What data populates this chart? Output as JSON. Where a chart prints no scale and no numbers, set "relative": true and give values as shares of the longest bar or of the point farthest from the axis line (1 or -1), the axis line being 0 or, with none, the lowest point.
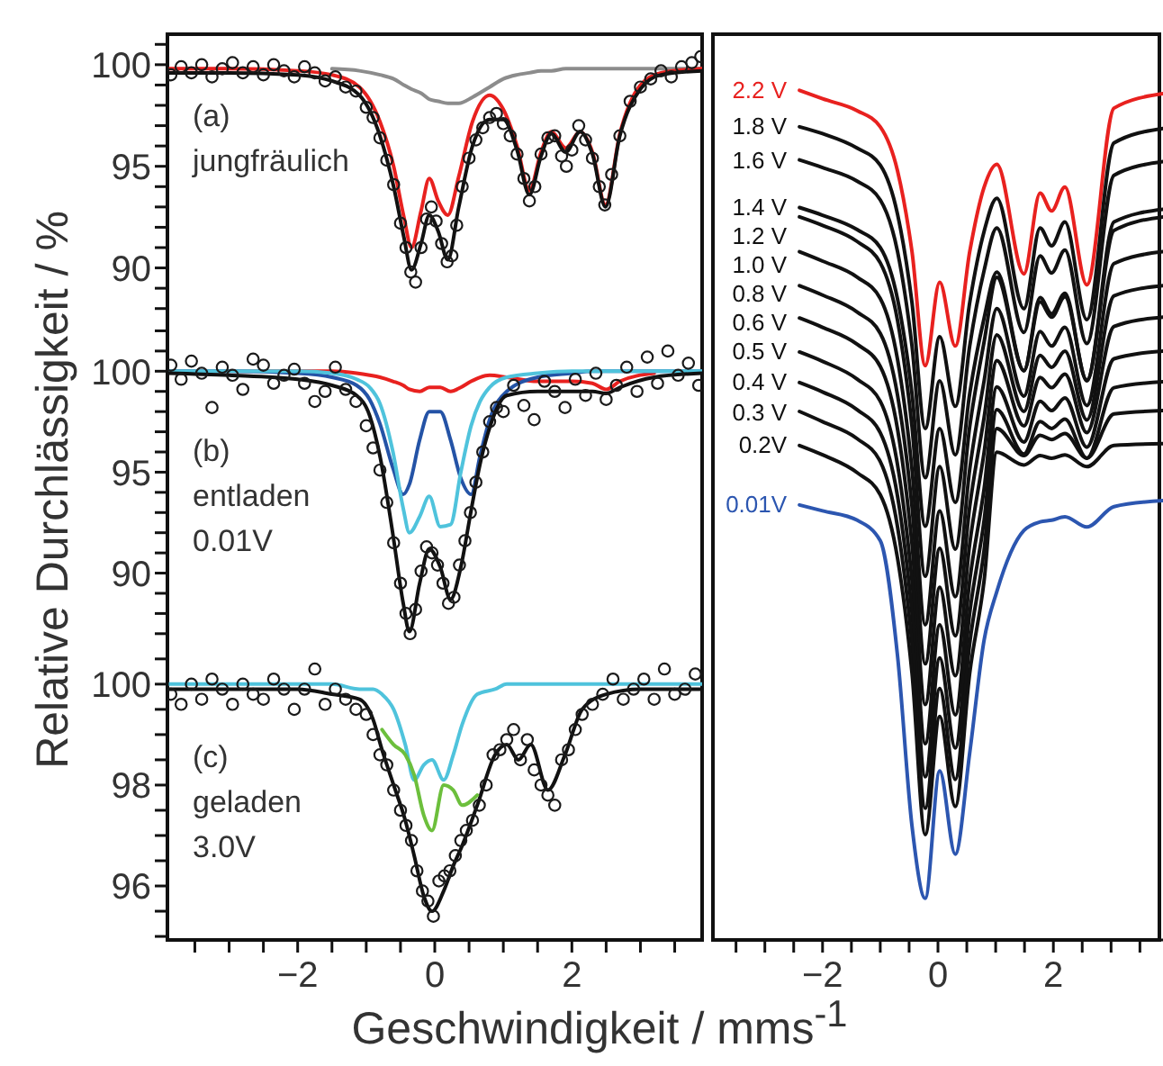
{
  "chart_data": [
    {
      "type": "line",
      "xlim": [
        -3.9,
        3.9
      ],
      "ylim": [
        87.5,
        101.5
      ],
      "tick_labels": "y",
      "annotations": [
        "(a)",
        "jungfräulich"
      ],
      "yticks": [
        {
          "value": 88,
          "label": null
        },
        {
          "value": 89,
          "label": null
        },
        90,
        {
          "value": 91,
          "label": null
        },
        {
          "value": 92,
          "label": null
        },
        {
          "value": 93,
          "label": null
        },
        {
          "value": 94,
          "label": null
        },
        95,
        {
          "value": 96,
          "label": null
        },
        {
          "value": 97,
          "label": null
        },
        {
          "value": 98,
          "label": null
        },
        {
          "value": 99,
          "label": null
        },
        100,
        {
          "value": 101,
          "label": null
        }
      ],
      "series": [
        {
          "type": "scatter",
          "marker": "circle",
          "color": "#1a1a1a",
          "x": [
            -3.85,
            -3.7,
            -3.55,
            -3.4,
            -3.25,
            -3.1,
            -2.95,
            -2.8,
            -2.65,
            -2.5,
            -2.35,
            -2.2,
            -2.05,
            -1.9,
            -1.75,
            -1.6,
            -1.45,
            -1.3,
            -1.15,
            -1.0,
            -0.9,
            -0.8,
            -0.7,
            -0.6,
            -0.5,
            -0.42,
            -0.35,
            -0.28,
            -0.2,
            -0.12,
            -0.05,
            0.02,
            0.1,
            0.18,
            0.25,
            0.32,
            0.4,
            0.5,
            0.6,
            0.7,
            0.8,
            0.9,
            1.0,
            1.1,
            1.2,
            1.3,
            1.38,
            1.46,
            1.55,
            1.65,
            1.75,
            1.85,
            1.92,
            2.0,
            2.1,
            2.2,
            2.3,
            2.4,
            2.48,
            2.58,
            2.7,
            2.85,
            3.0,
            3.15,
            3.3,
            3.45,
            3.6,
            3.75,
            3.88
          ],
          "values": [
            99.5,
            99.9,
            99.6,
            100.0,
            99.4,
            99.8,
            100.1,
            99.6,
            99.9,
            99.5,
            100.0,
            99.7,
            99.4,
            99.9,
            99.6,
            99.2,
            99.4,
            98.9,
            98.7,
            97.9,
            97.4,
            96.4,
            95.3,
            94.1,
            92.2,
            91.0,
            89.8,
            89.3,
            91.0,
            92.4,
            93.0,
            92.3,
            91.2,
            90.3,
            90.6,
            92.1,
            94.0,
            95.4,
            96.3,
            96.9,
            97.4,
            97.6,
            97.1,
            96.5,
            95.6,
            94.4,
            93.3,
            94.0,
            95.6,
            96.4,
            96.5,
            95.5,
            95.0,
            95.8,
            97.0,
            96.3,
            95.4,
            94.0,
            93.1,
            94.6,
            96.5,
            98.2,
            98.9,
            99.3,
            99.7,
            99.4,
            99.9,
            100.1,
            100.4
          ]
        },
        {
          "color": "#8c8c8c",
          "x": [
            -1.5,
            -1.1,
            -0.8,
            -0.6,
            -0.45,
            -0.34,
            -0.2,
            -0.08,
            0.05,
            0.19,
            0.35,
            0.55,
            0.8,
            1.0,
            1.2,
            1.38,
            1.55,
            1.7,
            1.91,
            2.12,
            2.3,
            2.49,
            2.7,
            3.0,
            3.3,
            3.9
          ],
          "values": [
            99.8,
            99.7,
            99.5,
            99.3,
            99.0,
            98.8,
            98.6,
            98.3,
            98.2,
            98.1,
            98.1,
            98.4,
            98.9,
            99.3,
            99.5,
            99.6,
            99.7,
            99.7,
            99.8,
            99.8,
            99.8,
            99.8,
            99.8,
            99.8,
            99.8,
            99.8
          ]
        },
        {
          "color": "#e8211f",
          "x": [
            -3.9,
            -3,
            -2,
            -1.5,
            -1.1,
            -0.8,
            -0.6,
            -0.45,
            -0.34,
            -0.2,
            -0.08,
            0.05,
            0.19,
            0.35,
            0.55,
            0.8,
            1.0,
            1.2,
            1.38,
            1.55,
            1.7,
            1.91,
            2.12,
            2.3,
            2.49,
            2.7,
            3.0,
            3.3,
            3.9
          ],
          "values": [
            99.8,
            99.8,
            99.7,
            99.5,
            98.9,
            97.2,
            95.0,
            92.5,
            91.0,
            92.8,
            94.4,
            93.3,
            92.6,
            94.5,
            97.2,
            98.5,
            97.8,
            96.0,
            93.8,
            95.7,
            96.7,
            95.9,
            96.7,
            95.7,
            93.1,
            96.6,
            99.0,
            99.6,
            99.8
          ]
        },
        {
          "color": "#111111",
          "x": [
            -3.9,
            -3,
            -2,
            -1.5,
            -1.1,
            -0.8,
            -0.6,
            -0.45,
            -0.34,
            -0.2,
            -0.08,
            0.05,
            0.19,
            0.35,
            0.55,
            0.8,
            1.0,
            1.2,
            1.38,
            1.55,
            1.7,
            1.91,
            2.12,
            2.3,
            2.49,
            2.7,
            3.0,
            3.3,
            3.9
          ],
          "values": [
            99.6,
            99.6,
            99.5,
            99.2,
            98.5,
            96.5,
            94.0,
            91.5,
            89.9,
            91.2,
            92.6,
            91.8,
            90.4,
            93.0,
            96.0,
            97.3,
            97.3,
            95.8,
            93.6,
            95.5,
            96.6,
            95.7,
            96.7,
            95.6,
            93.0,
            96.5,
            98.8,
            99.5,
            99.7
          ]
        }
      ]
    },
    {
      "type": "line",
      "xlim": [
        -3.9,
        3.9
      ],
      "ylim": [
        86.1,
        102.6
      ],
      "tick_labels": "y",
      "ylabel": "Relative Durchlässigkeit / %",
      "annotations": [
        "(b)",
        "entladen",
        "0.01V"
      ],
      "yticks": [
        {
          "value": 87,
          "label": null
        },
        {
          "value": 88,
          "label": null
        },
        {
          "value": 89,
          "label": null
        },
        90,
        {
          "value": 91,
          "label": null
        },
        {
          "value": 92,
          "label": null
        },
        {
          "value": 93,
          "label": null
        },
        {
          "value": 94,
          "label": null
        },
        95,
        {
          "value": 96,
          "label": null
        },
        {
          "value": 97,
          "label": null
        },
        {
          "value": 98,
          "label": null
        },
        {
          "value": 99,
          "label": null
        },
        100,
        {
          "value": 101,
          "label": null
        },
        {
          "value": 102,
          "label": null
        }
      ],
      "series": [
        {
          "type": "scatter",
          "marker": "circle",
          "color": "#1a1a1a",
          "x": [
            -3.85,
            -3.7,
            -3.55,
            -3.4,
            -3.25,
            -3.1,
            -2.95,
            -2.8,
            -2.65,
            -2.5,
            -2.35,
            -2.2,
            -2.05,
            -1.9,
            -1.75,
            -1.6,
            -1.45,
            -1.3,
            -1.15,
            -1.0,
            -0.9,
            -0.8,
            -0.7,
            -0.6,
            -0.5,
            -0.42,
            -0.36,
            -0.28,
            -0.2,
            -0.12,
            -0.04,
            0.04,
            0.12,
            0.2,
            0.28,
            0.36,
            0.44,
            0.52,
            0.6,
            0.7,
            0.8,
            0.9,
            1.0,
            1.15,
            1.3,
            1.45,
            1.6,
            1.75,
            1.9,
            2.05,
            2.2,
            2.35,
            2.5,
            2.65,
            2.8,
            2.95,
            3.1,
            3.25,
            3.4,
            3.55,
            3.7,
            3.85
          ],
          "values": [
            100.3,
            99.6,
            100.5,
            99.9,
            98.2,
            100.2,
            99.8,
            99.1,
            100.6,
            100.3,
            99.4,
            99.8,
            100.1,
            99.4,
            98.5,
            99.0,
            100.2,
            99.1,
            98.5,
            97.3,
            96.2,
            95.1,
            93.5,
            91.5,
            89.5,
            88.0,
            87.0,
            88.2,
            90.1,
            91.3,
            91.0,
            90.4,
            89.5,
            88.5,
            88.8,
            90.4,
            91.6,
            93.0,
            94.5,
            96.0,
            97.5,
            98.2,
            98.0,
            99.3,
            98.3,
            97.6,
            99.5,
            99.0,
            98.2,
            99.6,
            98.8,
            99.9,
            98.6,
            99.3,
            100.2,
            99.0,
            100.7,
            99.4,
            101.0,
            99.8,
            100.4,
            99.3
          ]
        },
        {
          "color": "#e8211f",
          "x": [
            -3.9,
            -3,
            -2,
            -1.5,
            -1.14,
            -0.95,
            -0.8,
            -0.61,
            -0.46,
            -0.37,
            -0.22,
            -0.08,
            0.08,
            0.23,
            0.38,
            0.53,
            0.66,
            0.8,
            1.05,
            1.5,
            2.0,
            2.3,
            2.5,
            2.7,
            3.2
          ],
          "values": [
            100,
            100,
            100,
            100,
            99.9,
            99.8,
            99.7,
            99.5,
            99.3,
            99.1,
            99.0,
            99.2,
            99.2,
            99.0,
            99.2,
            99.5,
            99.7,
            99.8,
            99.7,
            99.5,
            99.5,
            99.4,
            99.1,
            99.5,
            99.9
          ]
        },
        {
          "color": "#2453a6",
          "x": [
            -3.9,
            -3,
            -2,
            -1.5,
            -1.14,
            -0.95,
            -0.8,
            -0.61,
            -0.46,
            -0.37,
            -0.22,
            -0.08,
            0.08,
            0.23,
            0.38,
            0.53,
            0.66,
            0.8,
            1.05,
            1.5,
            2.0,
            2.3,
            2.5,
            2.7,
            3.2,
            3.9
          ],
          "values": [
            100,
            100,
            99.9,
            99.7,
            99.3,
            98.6,
            97.4,
            95.2,
            93.9,
            94.4,
            96.6,
            98.0,
            98.0,
            96.6,
            94.7,
            93.9,
            95.8,
            97.6,
            99.0,
            99.7,
            99.9,
            100,
            100,
            100,
            100,
            100
          ]
        },
        {
          "color": "#4fc3dc",
          "x": [
            -3.9,
            -3,
            -2,
            -1.5,
            -1.14,
            -0.95,
            -0.8,
            -0.61,
            -0.46,
            -0.37,
            -0.22,
            -0.08,
            0.08,
            0.23,
            0.38,
            0.53,
            0.66,
            0.8,
            1.05,
            1.5,
            2.0,
            2.3,
            2.5,
            2.7,
            3.2,
            3.9
          ],
          "values": [
            100,
            100,
            100,
            99.9,
            99.6,
            99.2,
            98.4,
            96.0,
            93.2,
            92.0,
            92.8,
            93.8,
            92.3,
            92.4,
            95.0,
            97.3,
            98.5,
            99.2,
            99.7,
            99.9,
            100,
            100,
            100,
            100,
            100,
            100
          ]
        },
        {
          "color": "#111111",
          "x": [
            -3.9,
            -3,
            -2,
            -1.5,
            -1.14,
            -0.95,
            -0.8,
            -0.61,
            -0.46,
            -0.37,
            -0.22,
            -0.08,
            0.08,
            0.23,
            0.38,
            0.53,
            0.66,
            0.8,
            1.05,
            1.5,
            2.0,
            2.3,
            2.5,
            2.7,
            3.2,
            3.9
          ],
          "values": [
            99.9,
            99.8,
            99.6,
            99.3,
            98.8,
            97.8,
            95.8,
            91.9,
            88.5,
            87.1,
            89.5,
            91.2,
            90.3,
            88.7,
            90.3,
            93.1,
            95.4,
            97.2,
            98.8,
            99.0,
            99.0,
            99.0,
            98.9,
            99.2,
            99.7,
            99.9
          ]
        }
      ]
    },
    {
      "type": "line",
      "xlim": [
        -3.9,
        3.9
      ],
      "ylim": [
        94.93,
        100.64
      ],
      "xlabel": "Geschwindigkeit / mms$^{-1}$",
      "annotations": [
        "(c)",
        "geladen",
        "3.0V"
      ],
      "xticks": [
        {
          "value": -3.5,
          "label": null
        },
        {
          "value": -3,
          "label": null
        },
        {
          "value": -2.5,
          "label": null
        },
        {
          "value": -2,
          "label": "−2"
        },
        {
          "value": -1.5,
          "label": null
        },
        {
          "value": -1,
          "label": null
        },
        {
          "value": -0.5,
          "label": null
        },
        {
          "value": 0,
          "label": "0"
        },
        {
          "value": 0.5,
          "label": null
        },
        {
          "value": 1,
          "label": null
        },
        {
          "value": 1.5,
          "label": null
        },
        2,
        {
          "value": 2.5,
          "label": null
        },
        {
          "value": 3,
          "label": null
        },
        {
          "value": 3.5,
          "label": null
        }
      ],
      "yticks": [
        {
          "value": 95,
          "label": null
        },
        {
          "value": 95.5,
          "label": null
        },
        96,
        {
          "value": 96.5,
          "label": null
        },
        {
          "value": 97,
          "label": null
        },
        {
          "value": 97.5,
          "label": null
        },
        98,
        {
          "value": 98.5,
          "label": null
        },
        {
          "value": 99,
          "label": null
        },
        {
          "value": 99.5,
          "label": null
        },
        100,
        {
          "value": 100.5,
          "label": null
        }
      ],
      "series": [
        {
          "type": "scatter",
          "marker": "circle",
          "color": "#1a1a1a",
          "x": [
            -3.85,
            -3.7,
            -3.55,
            -3.4,
            -3.25,
            -3.1,
            -2.95,
            -2.8,
            -2.65,
            -2.5,
            -2.35,
            -2.2,
            -2.05,
            -1.9,
            -1.75,
            -1.6,
            -1.45,
            -1.3,
            -1.15,
            -1.0,
            -0.9,
            -0.8,
            -0.7,
            -0.6,
            -0.5,
            -0.42,
            -0.34,
            -0.26,
            -0.18,
            -0.1,
            -0.02,
            0.06,
            0.14,
            0.22,
            0.3,
            0.38,
            0.46,
            0.55,
            0.65,
            0.75,
            0.85,
            0.95,
            1.05,
            1.15,
            1.25,
            1.35,
            1.45,
            1.55,
            1.65,
            1.75,
            1.85,
            1.95,
            2.05,
            2.15,
            2.3,
            2.45,
            2.6,
            2.75,
            2.9,
            3.05,
            3.2,
            3.35,
            3.5,
            3.65,
            3.8
          ],
          "values": [
            99.8,
            99.6,
            100.0,
            99.7,
            100.1,
            99.9,
            99.6,
            100.0,
            99.8,
            99.7,
            100.1,
            99.9,
            99.5,
            99.9,
            100.3,
            99.6,
            99.9,
            99.7,
            99.5,
            99.4,
            99.0,
            98.6,
            98.4,
            97.9,
            97.5,
            97.2,
            96.9,
            96.3,
            95.9,
            95.7,
            95.4,
            96.1,
            96.2,
            96.3,
            96.6,
            96.9,
            97.1,
            97.3,
            97.6,
            98.0,
            98.6,
            98.7,
            98.9,
            99.1,
            98.5,
            98.9,
            98.3,
            98.0,
            97.8,
            97.6,
            98.5,
            98.7,
            99.1,
            99.4,
            99.6,
            99.8,
            100.1,
            99.7,
            99.9,
            100.1,
            99.7,
            100.3,
            99.8,
            99.9,
            100.2
          ]
        },
        {
          "color": "#4fc3dc",
          "x": [
            -3.9,
            -3,
            -2,
            -1.5,
            -1.1,
            -0.9,
            -0.77,
            -0.6,
            -0.43,
            -0.3,
            -0.16,
            -0.04,
            0.13,
            0.27,
            0.4,
            0.62,
            0.88,
            1.05,
            1.22,
            1.4,
            1.65,
            1.9,
            2.15,
            2.5,
            3.0,
            3.9
          ],
          "values": [
            100,
            100,
            100,
            100,
            99.9,
            99.9,
            99.8,
            99.5,
            98.8,
            98.1,
            98.4,
            98.5,
            98.1,
            98.6,
            99.2,
            99.8,
            99.9,
            100,
            100,
            100,
            100,
            100,
            100,
            100,
            100,
            100
          ]
        },
        {
          "color": "#111111",
          "x": [
            -3.9,
            -3,
            -2,
            -1.5,
            -1.1,
            -0.9,
            -0.77,
            -0.6,
            -0.43,
            -0.3,
            -0.16,
            -0.04,
            0.13,
            0.27,
            0.4,
            0.62,
            0.88,
            1.05,
            1.22,
            1.4,
            1.65,
            1.9,
            2.15,
            2.5,
            3.0,
            3.9
          ],
          "values": [
            99.9,
            99.9,
            99.9,
            99.8,
            99.7,
            99.3,
            98.7,
            98.0,
            97.3,
            96.6,
            95.8,
            95.5,
            95.9,
            96.4,
            96.8,
            97.6,
            98.6,
            98.8,
            98.5,
            98.8,
            97.9,
            98.6,
            99.5,
            99.8,
            99.9,
            99.9
          ]
        },
        {
          "color": "#6cbf3c",
          "x": [
            -0.77,
            -0.6,
            -0.43,
            -0.3,
            -0.16,
            -0.04,
            0.13,
            0.27,
            0.4,
            0.62
          ],
          "values": [
            99.1,
            98.8,
            98.6,
            98.2,
            97.4,
            97.1,
            98.0,
            97.9,
            97.6,
            97.8
          ]
        }
      ]
    },
    {
      "type": "line",
      "relative": true,
      "xlim": [
        -3.9,
        3.9
      ],
      "tick_labels": "x",
      "xticks": [
        {
          "value": -3.5,
          "label": null
        },
        {
          "value": -3,
          "label": null
        },
        {
          "value": -2.5,
          "label": null
        },
        {
          "value": -2,
          "label": "−2"
        },
        {
          "value": -1.5,
          "label": null
        },
        {
          "value": -1,
          "label": null
        },
        {
          "value": -0.5,
          "label": null
        },
        {
          "value": 0,
          "label": "0"
        },
        {
          "value": 0.5,
          "label": null
        },
        {
          "value": 1,
          "label": null
        },
        {
          "value": 1.5,
          "label": null
        },
        2,
        {
          "value": 2.5,
          "label": null
        },
        {
          "value": 3,
          "label": null
        },
        {
          "value": 3.5,
          "label": null
        }
      ],
      "x": [
        -2.4,
        -2,
        -1.4,
        -1,
        -0.7,
        -0.45,
        -0.22,
        0.03,
        0.3,
        0.55,
        0.8,
        1.02,
        1.49,
        1.77,
        1.97,
        2.2,
        2.58,
        3.05,
        3.9
      ],
      "series": [
        {
          "name": "2.2 V",
          "color": "#e8211f",
          "values": [
            1.0,
            0.99,
            0.976,
            0.957,
            0.905,
            0.81,
            0.676,
            0.774,
            0.699,
            0.81,
            0.886,
            0.913,
            0.784,
            0.879,
            0.858,
            0.886,
            0.771,
            0.979,
            0.996
          ]
        },
        {
          "name": "1.8 V",
          "color": "#111111",
          "values": [
            0.957,
            0.949,
            0.932,
            0.912,
            0.854,
            0.75,
            0.602,
            0.71,
            0.628,
            0.75,
            0.834,
            0.873,
            0.743,
            0.838,
            0.817,
            0.845,
            0.73,
            0.938,
            0.955
          ]
        },
        {
          "name": "1.6 V",
          "color": "#111111",
          "values": [
            0.918,
            0.909,
            0.893,
            0.871,
            0.81,
            0.699,
            0.544,
            0.658,
            0.571,
            0.699,
            0.788,
            0.838,
            0.715,
            0.805,
            0.785,
            0.812,
            0.702,
            0.9,
            0.916
          ]
        },
        {
          "name": "1.4 V",
          "color": "#111111",
          "values": [
            0.862,
            0.853,
            0.836,
            0.815,
            0.754,
            0.643,
            0.487,
            0.602,
            0.515,
            0.643,
            0.732,
            0.786,
            0.67,
            0.756,
            0.737,
            0.761,
            0.658,
            0.845,
            0.86
          ]
        },
        {
          "name": "1.2 V",
          "color": "#111111",
          "values": [
            0.851,
            0.841,
            0.822,
            0.797,
            0.729,
            0.604,
            0.428,
            0.557,
            0.46,
            0.604,
            0.704,
            0.78,
            0.67,
            0.751,
            0.733,
            0.757,
            0.659,
            0.835,
            0.851
          ]
        },
        {
          "name": "1.0 V",
          "color": "#111111",
          "values": [
            0.81,
            0.799,
            0.78,
            0.755,
            0.683,
            0.554,
            0.371,
            0.505,
            0.404,
            0.554,
            0.658,
            0.743,
            0.64,
            0.716,
            0.699,
            0.721,
            0.629,
            0.796,
            0.81
          ]
        },
        {
          "name": "0.8 V",
          "color": "#111111",
          "values": [
            0.77,
            0.759,
            0.739,
            0.714,
            0.641,
            0.51,
            0.325,
            0.461,
            0.358,
            0.51,
            0.615,
            0.712,
            0.622,
            0.688,
            0.674,
            0.693,
            0.612,
            0.758,
            0.77
          ]
        },
        {
          "name": "0.6 V",
          "color": "#111111",
          "values": [
            0.732,
            0.721,
            0.701,
            0.675,
            0.601,
            0.466,
            0.277,
            0.415,
            0.311,
            0.466,
            0.574,
            0.682,
            0.605,
            0.662,
            0.65,
            0.666,
            0.597,
            0.722,
            0.733
          ]
        },
        {
          "name": "0.5 V",
          "color": "#111111",
          "values": [
            0.692,
            0.681,
            0.66,
            0.634,
            0.559,
            0.423,
            0.231,
            0.371,
            0.265,
            0.423,
            0.531,
            0.651,
            0.586,
            0.634,
            0.623,
            0.638,
            0.58,
            0.684,
            0.693
          ]
        },
        {
          "name": "0.4 V",
          "color": "#111111",
          "values": [
            0.656,
            0.645,
            0.624,
            0.597,
            0.522,
            0.385,
            0.192,
            0.332,
            0.226,
            0.385,
            0.494,
            0.624,
            0.572,
            0.61,
            0.602,
            0.613,
            0.567,
            0.65,
            0.657
          ]
        },
        {
          "name": "0.3 V",
          "color": "#111111",
          "values": [
            0.622,
            0.61,
            0.59,
            0.563,
            0.486,
            0.349,
            0.155,
            0.296,
            0.189,
            0.349,
            0.459,
            0.602,
            0.57,
            0.594,
            0.589,
            0.596,
            0.567,
            0.619,
            0.623
          ]
        },
        {
          "name": "0.2V",
          "color": "#111111",
          "values": [
            0.582,
            0.571,
            0.55,
            0.524,
            0.449,
            0.314,
            0.124,
            0.263,
            0.157,
            0.314,
            0.423,
            0.574,
            0.559,
            0.57,
            0.567,
            0.571,
            0.557,
            0.582,
            0.584
          ]
        },
        {
          "name": "0.01V",
          "color": "#2c56b0",
          "values": [
            0.512,
            0.505,
            0.494,
            0.47,
            0.334,
            0.134,
            0.049,
            0.199,
            0.101,
            0.22,
            0.353,
            0.41,
            0.482,
            0.492,
            0.494,
            0.498,
            0.486,
            0.51,
            0.517
          ]
        }
      ]
    }
  ]
}
